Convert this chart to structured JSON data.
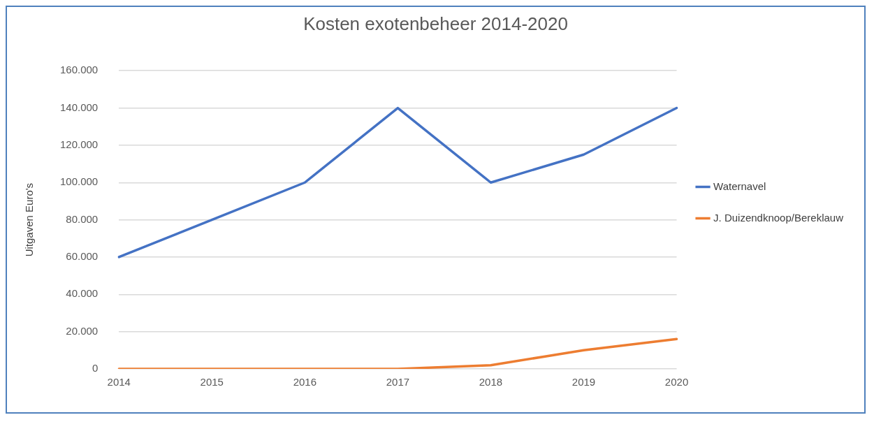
{
  "chart_data": {
    "type": "line",
    "title": "Kosten exotenbeheer 2014-2020",
    "ylabel": "Uitgaven Euro's",
    "categories": [
      "2014",
      "2015",
      "2016",
      "2017",
      "2018",
      "2019",
      "2020"
    ],
    "series": [
      {
        "name": "Waternavel",
        "color": "#4472c4",
        "values": [
          60000,
          80000,
          100000,
          140000,
          100000,
          115000,
          140000
        ]
      },
      {
        "name": "J. Duizendknoop/Bereklauw",
        "color": "#ed7d31",
        "values": [
          0,
          0,
          0,
          0,
          2000,
          10000,
          16000
        ]
      }
    ],
    "ylim": [
      0,
      160000
    ],
    "yticks": [
      0,
      {
        "value": 20000,
        "label": "20.000"
      },
      {
        "value": 40000,
        "label": "40.000"
      },
      {
        "value": 60000,
        "label": "60.000"
      },
      {
        "value": 80000,
        "label": "80.000"
      },
      {
        "value": 100000,
        "label": "100.000"
      },
      {
        "value": 120000,
        "label": "120.000"
      },
      {
        "value": 140000,
        "label": "140.000"
      },
      {
        "value": 160000,
        "label": "160.000"
      }
    ],
    "grid": "y",
    "legend": "right",
    "marker": "none",
    "line_style": "solid"
  }
}
